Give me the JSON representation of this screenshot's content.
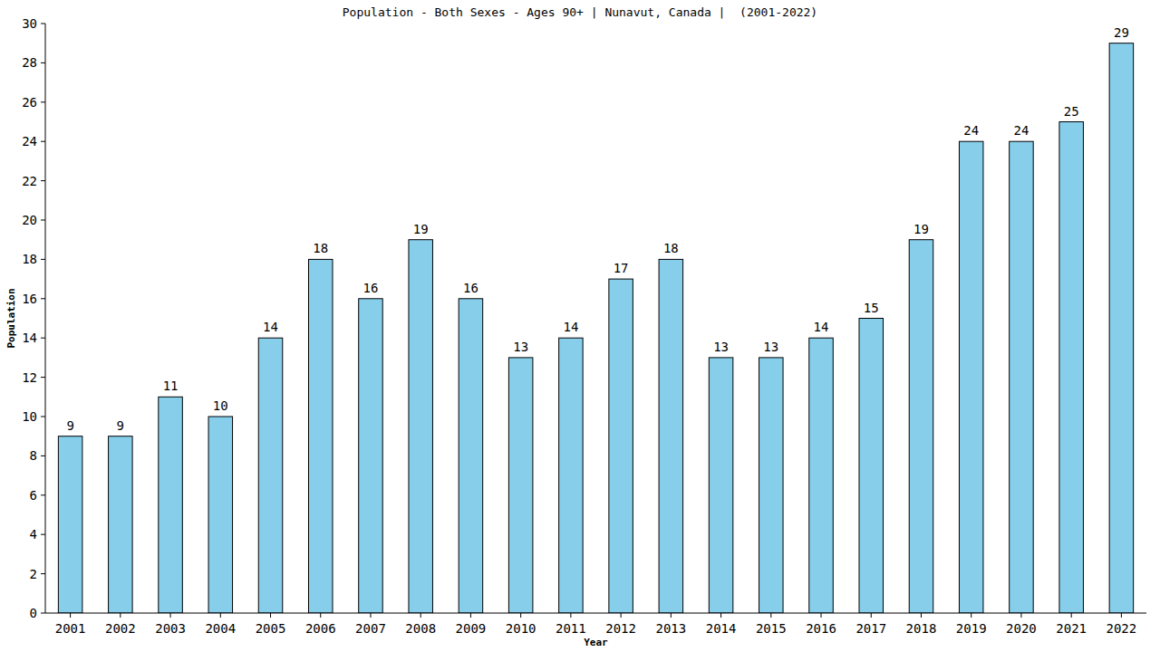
{
  "chart_data": {
    "type": "bar",
    "title": "Population - Both Sexes - Ages 90+ | Nunavut, Canada |  (2001-2022)",
    "x_label": "Year",
    "y_label": "Population",
    "categories": [
      "2001",
      "2002",
      "2003",
      "2004",
      "2005",
      "2006",
      "2007",
      "2008",
      "2009",
      "2010",
      "2011",
      "2012",
      "2013",
      "2014",
      "2015",
      "2016",
      "2017",
      "2018",
      "2019",
      "2020",
      "2021",
      "2022"
    ],
    "values": [
      9,
      9,
      11,
      10,
      14,
      18,
      16,
      19,
      16,
      13,
      14,
      17,
      18,
      13,
      13,
      14,
      15,
      19,
      24,
      24,
      25,
      29
    ],
    "color": "#87ceeb",
    "ylim": [
      0,
      30
    ],
    "yticks": [
      0,
      2,
      4,
      6,
      8,
      10,
      12,
      14,
      16,
      18,
      20,
      22,
      24,
      26,
      28,
      30
    ],
    "grid": false,
    "data_labels": true
  }
}
